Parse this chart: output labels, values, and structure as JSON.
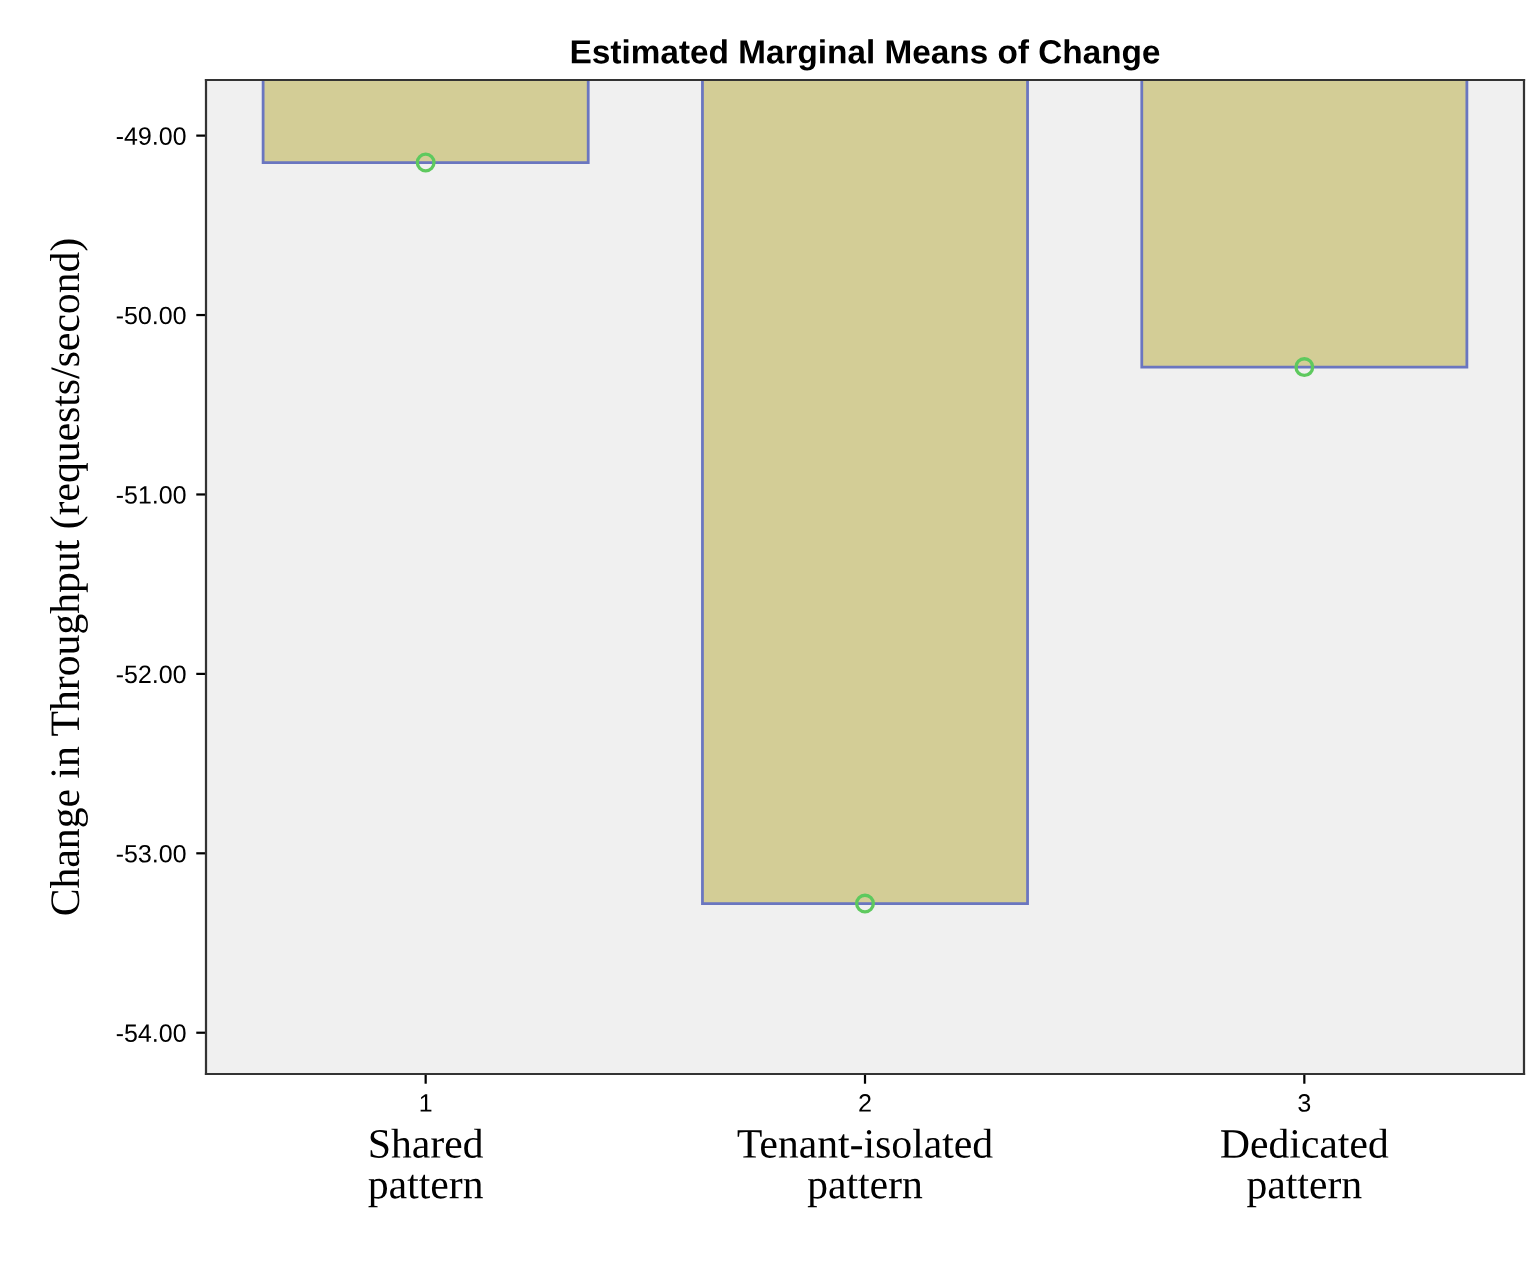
{
  "chart_data": {
    "type": "bar",
    "title": "Estimated Marginal Means of Change",
    "ylabel": "Change in Throughput (requests/second)",
    "categories": [
      "1",
      "2",
      "3"
    ],
    "series": [
      {
        "color": "#d3cd96",
        "values": [
          -49.15,
          -53.28,
          -50.29
        ]
      },
      {
        "type": "scatter",
        "color": "#5ec95e",
        "x": [
          "1",
          "2",
          "3"
        ],
        "values": [
          -49.15,
          -53.28,
          -50.29
        ],
        "marker": "circle"
      }
    ],
    "ylim": [
      -54.23,
      -48.69
    ],
    "yticks": [
      {
        "value": -54,
        "label": "-54.00"
      },
      {
        "value": -53,
        "label": "-53.00"
      },
      {
        "value": -52,
        "label": "-52.00"
      },
      {
        "value": -51,
        "label": "-51.00"
      },
      {
        "value": -50,
        "label": "-50.00"
      },
      {
        "value": -49,
        "label": "-49.00"
      }
    ],
    "annotations": [
      "Shared\npattern",
      "Tenant-isolated\npattern",
      "Dedicated\npattern"
    ],
    "grid": false,
    "legend": false
  }
}
